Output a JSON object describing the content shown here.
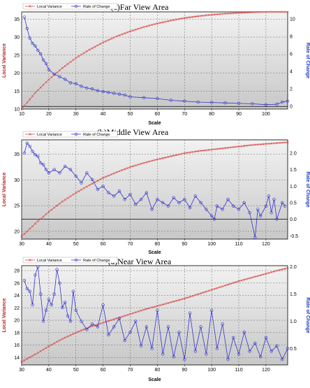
{
  "chart_data": [
    {
      "type": "line",
      "title": "(c)Far View Area",
      "xlabel": "Scale",
      "ylabel": "Local Variance",
      "y2label": "Rate of Change",
      "xlim": [
        10,
        108
      ],
      "ylim": [
        10,
        37
      ],
      "y2lim": [
        -0.3,
        10.8
      ],
      "xticks": [
        10,
        20,
        30,
        40,
        50,
        60,
        70,
        80,
        90,
        100
      ],
      "yticks": [
        10,
        15,
        20,
        25,
        30,
        35
      ],
      "y2ticks": [
        0,
        2,
        4,
        6,
        8,
        10
      ],
      "grid": true,
      "legend": "top-left",
      "series": [
        {
          "name": "Local Variance",
          "axis": "left",
          "color": "#d94b4b",
          "marker": "x",
          "x_start": 10,
          "x_end": 108,
          "x": [
            10,
            15,
            20,
            25,
            30,
            35,
            40,
            45,
            50,
            55,
            60,
            65,
            70,
            75,
            80,
            85,
            90,
            95,
            100,
            105,
            108
          ],
          "y": [
            10,
            14.5,
            18.2,
            21.4,
            24.2,
            26.5,
            28.5,
            30.2,
            31.6,
            32.8,
            33.8,
            34.6,
            35.3,
            35.8,
            36.2,
            36.5,
            36.7,
            36.9,
            37,
            37,
            37
          ]
        },
        {
          "name": "Rate of Change",
          "axis": "right",
          "color": "#3333cc",
          "marker": "o",
          "x_start": 11,
          "x_end": 108,
          "x": [
            11,
            12,
            13,
            14,
            15,
            16,
            17,
            18,
            19,
            20,
            22,
            24,
            26,
            28,
            30,
            32,
            34,
            36,
            38,
            40,
            42,
            44,
            46,
            48,
            50,
            55,
            60,
            65,
            70,
            75,
            80,
            85,
            90,
            95,
            100,
            104,
            106,
            108
          ],
          "y": [
            10.2,
            8.9,
            7.8,
            7.2,
            6.9,
            6.4,
            6.0,
            5.3,
            4.9,
            4.2,
            3.7,
            3.4,
            3.1,
            2.7,
            2.6,
            2.3,
            2.1,
            2.0,
            1.8,
            1.7,
            1.6,
            1.5,
            1.4,
            1.3,
            1.1,
            1.0,
            0.9,
            0.7,
            0.6,
            0.5,
            0.45,
            0.4,
            0.35,
            0.3,
            0.2,
            0.25,
            0.5,
            0.6
          ]
        }
      ]
    },
    {
      "type": "line",
      "title": "(b)Middle View Area",
      "xlabel": "Scale",
      "ylabel": "Local Variance",
      "y2label": "Rate of Change",
      "xlim": [
        30,
        128
      ],
      "ylim": [
        18.5,
        37.8
      ],
      "y2lim": [
        -0.6,
        2.4
      ],
      "xticks": [
        30,
        40,
        50,
        60,
        70,
        80,
        90,
        100,
        110,
        120
      ],
      "yticks": [
        20,
        25,
        30,
        35
      ],
      "y2ticks": [
        -0.5,
        0.0,
        0.5,
        1.0,
        1.5,
        2.0
      ],
      "grid": true,
      "legend": "top-left",
      "series": [
        {
          "name": "Local Variance",
          "axis": "left",
          "color": "#d94b4b",
          "marker": "x",
          "x_start": 30,
          "x_end": 128,
          "x": [
            30,
            35,
            40,
            45,
            50,
            55,
            60,
            65,
            70,
            75,
            80,
            85,
            90,
            95,
            100,
            105,
            110,
            115,
            120,
            125,
            128
          ],
          "y": [
            19,
            21.5,
            23.8,
            25.8,
            27.5,
            29,
            30.4,
            31.5,
            32.5,
            33.3,
            34,
            34.6,
            35.2,
            35.6,
            35.9,
            36.2,
            36.5,
            36.8,
            37.0,
            37.2,
            37.3
          ]
        },
        {
          "name": "Rate of Change",
          "axis": "right",
          "color": "#3333cc",
          "marker": "o",
          "x_start": 31,
          "x_end": 127,
          "x": [
            31,
            32,
            33,
            34,
            35,
            36,
            37,
            38,
            39,
            40,
            42,
            44,
            46,
            48,
            50,
            52,
            54,
            56,
            58,
            60,
            62,
            64,
            66,
            68,
            70,
            72,
            74,
            76,
            78,
            80,
            82,
            84,
            86,
            88,
            90,
            92,
            94,
            96,
            98,
            100,
            101,
            102,
            104,
            106,
            108,
            110,
            112,
            114,
            116,
            117,
            118,
            120,
            121,
            122,
            123,
            124,
            126,
            127
          ],
          "y": [
            2.0,
            2.3,
            2.2,
            2.05,
            1.95,
            1.9,
            1.7,
            1.65,
            1.5,
            1.4,
            1.5,
            1.4,
            1.6,
            1.5,
            1.3,
            1.1,
            1.4,
            1.2,
            0.9,
            1.0,
            0.8,
            0.7,
            0.85,
            0.6,
            0.75,
            0.45,
            0.6,
            0.8,
            0.3,
            0.6,
            0.5,
            0.4,
            0.65,
            0.5,
            0.6,
            0.35,
            0.7,
            0.5,
            0.3,
            0.1,
            0.0,
            0.4,
            0.3,
            0.6,
            0.4,
            0.3,
            0.5,
            0.2,
            -0.55,
            0.3,
            0.1,
            0.4,
            0.7,
            0.2,
            0.6,
            0.0,
            0.5,
            0.4
          ]
        }
      ]
    },
    {
      "type": "line",
      "title": "(a)Near View Area",
      "xlabel": "Scale",
      "ylabel": "Local Variance",
      "y2label": "Rate of Change",
      "xlim": [
        30,
        128
      ],
      "ylim": [
        12.8,
        28.8
      ],
      "y2lim": [
        0.2,
        2.02
      ],
      "xticks": [
        30,
        40,
        50,
        60,
        70,
        80,
        90,
        100,
        110,
        120
      ],
      "yticks": [
        14,
        16,
        18,
        20,
        22,
        24,
        26,
        28
      ],
      "y2ticks": [
        0.5,
        1.0,
        1.5,
        2.0
      ],
      "grid": true,
      "legend": "top-left",
      "series": [
        {
          "name": "Local Variance",
          "axis": "left",
          "color": "#d94b4b",
          "marker": "x",
          "x_start": 30,
          "x_end": 128,
          "x": [
            30,
            35,
            40,
            45,
            50,
            55,
            60,
            65,
            70,
            75,
            80,
            85,
            90,
            95,
            100,
            105,
            110,
            115,
            120,
            125,
            128
          ],
          "y": [
            13.3,
            14.5,
            15.8,
            17,
            18,
            18.9,
            19.6,
            20.3,
            21,
            21.7,
            22.3,
            22.9,
            23.5,
            24.2,
            24.9,
            25.6,
            26.3,
            26.9,
            27.5,
            28.1,
            28.4
          ]
        },
        {
          "name": "Rate of Change",
          "axis": "right",
          "color": "#3333cc",
          "marker": "o",
          "x_start": 31,
          "x_end": 128,
          "x": [
            31,
            32,
            33,
            34,
            35,
            36,
            37,
            38,
            39,
            40,
            41,
            42,
            43,
            44,
            45,
            46,
            47,
            48,
            49,
            50,
            52,
            54,
            56,
            58,
            60,
            62,
            64,
            66,
            68,
            70,
            72,
            74,
            76,
            78,
            80,
            82,
            84,
            86,
            88,
            90,
            92,
            94,
            96,
            98,
            100,
            102,
            104,
            106,
            108,
            110,
            112,
            114,
            116,
            118,
            120,
            122,
            124,
            126,
            128
          ],
          "y": [
            1.75,
            1.6,
            1.55,
            1.3,
            1.85,
            2.0,
            1.5,
            1.0,
            1.2,
            1.4,
            1.3,
            1.5,
            1.95,
            1.7,
            1.25,
            1.35,
            1.1,
            1.0,
            1.55,
            1.2,
            1.0,
            0.85,
            0.95,
            0.9,
            1.3,
            0.75,
            0.9,
            1.05,
            0.65,
            0.8,
            1.0,
            0.55,
            0.9,
            0.5,
            1.2,
            0.4,
            0.9,
            0.35,
            0.8,
            0.3,
            1.15,
            0.45,
            0.9,
            0.4,
            1.2,
            0.5,
            0.95,
            0.3,
            0.7,
            0.4,
            0.8,
            0.45,
            0.6,
            0.35,
            0.7,
            0.45,
            0.55,
            0.3,
            0.5
          ]
        }
      ]
    }
  ]
}
